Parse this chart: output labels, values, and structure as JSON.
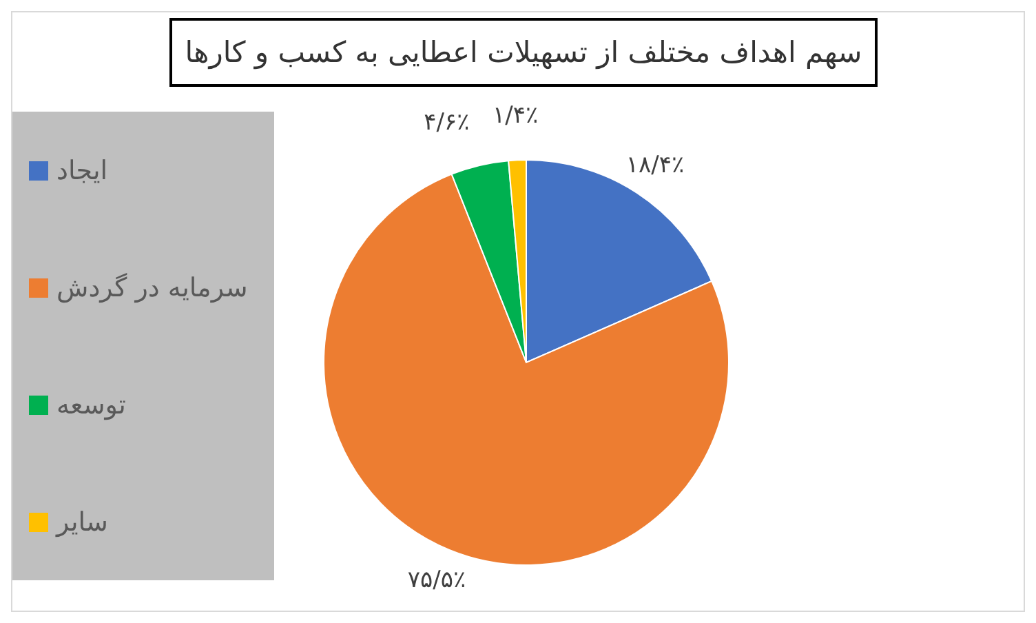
{
  "chart_data": {
    "type": "pie",
    "title": "سهم اهداف مختلف از تسهیلات اعطایی به کسب و کارها",
    "categories": [
      "ایجاد",
      "سرمایه در گردش",
      "توسعه",
      "سایر"
    ],
    "values": [
      18.4,
      75.5,
      4.6,
      1.4
    ],
    "colors": [
      "#4472c4",
      "#ed7d31",
      "#00b050",
      "#ffc000"
    ],
    "value_labels": [
      "۱۸/۴٪",
      "۷۵/۵٪",
      "۴/۶٪",
      "۱/۴٪"
    ],
    "legend": "left"
  }
}
